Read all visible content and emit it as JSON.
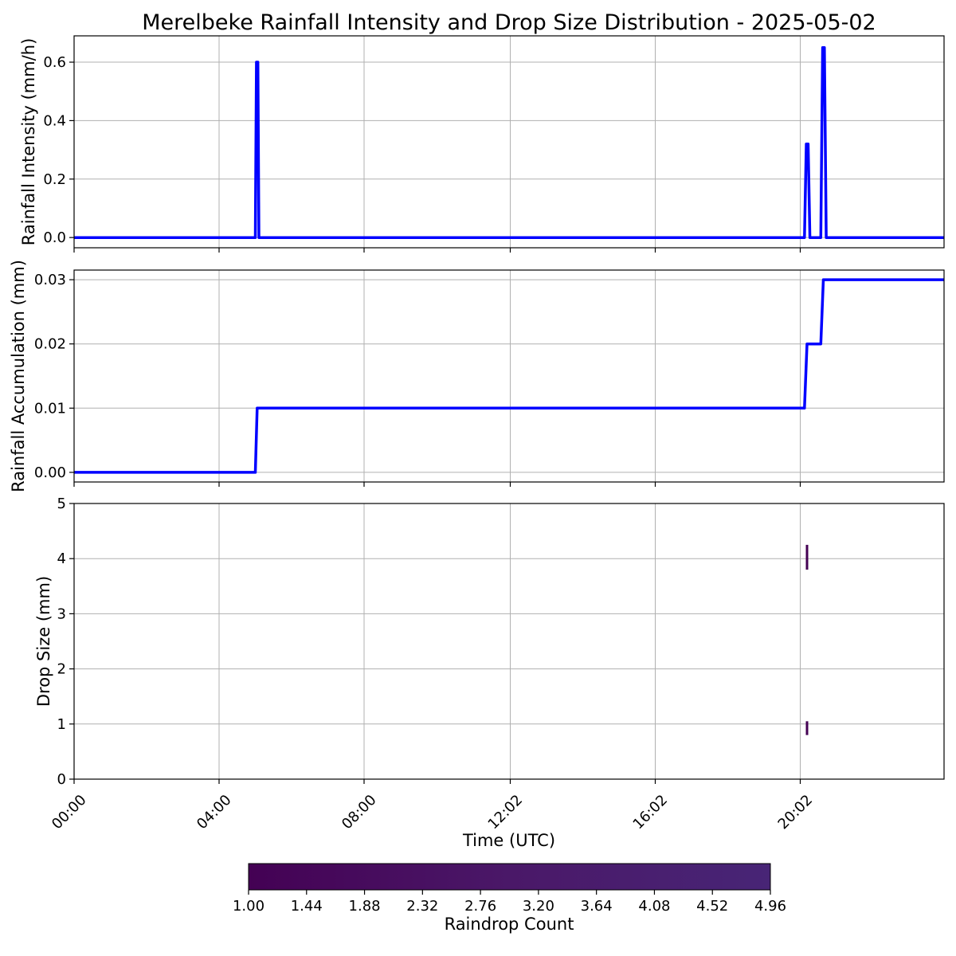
{
  "figure": {
    "title": "Merelbeke Rainfall Intensity and Drop Size Distribution - 2025-05-02"
  },
  "chart_data": [
    {
      "type": "line",
      "panel": "intensity",
      "title": "Merelbeke Rainfall Intensity and Drop Size Distribution - 2025-05-02",
      "xlabel": "",
      "ylabel": "Rainfall Intensity (mm/h)",
      "x_unit": "hours since 00:00 UTC",
      "xlim": [
        0,
        24
      ],
      "ylim": [
        -0.035,
        0.69
      ],
      "yticks": [
        0.0,
        0.2,
        0.4,
        0.6
      ],
      "ytick_labels": [
        "0.0",
        "0.2",
        "0.4",
        "0.6"
      ],
      "grid": true,
      "color": "#0000ff",
      "x": [
        0,
        5.0,
        5.03,
        5.07,
        5.1,
        20.15,
        20.2,
        20.25,
        20.3,
        20.6,
        20.65,
        20.7,
        20.75,
        24
      ],
      "y": [
        0,
        0,
        0.6,
        0.6,
        0,
        0,
        0.32,
        0.32,
        0,
        0,
        0.65,
        0.65,
        0,
        0
      ]
    },
    {
      "type": "line",
      "panel": "accumulation",
      "xlabel": "",
      "ylabel": "Rainfall Accumulation (mm)",
      "x_unit": "hours since 00:00 UTC",
      "xlim": [
        0,
        24
      ],
      "ylim": [
        -0.0015,
        0.0315
      ],
      "yticks": [
        0.0,
        0.01,
        0.02,
        0.03
      ],
      "ytick_labels": [
        "0.00",
        "0.01",
        "0.02",
        "0.03"
      ],
      "grid": true,
      "color": "#0000ff",
      "x": [
        0,
        5.0,
        5.05,
        20.15,
        20.22,
        20.6,
        20.67,
        24
      ],
      "y": [
        0,
        0,
        0.01,
        0.01,
        0.02,
        0.02,
        0.03,
        0.03
      ]
    },
    {
      "type": "heatmap",
      "panel": "drop-size",
      "xlabel": "Time (UTC)",
      "ylabel": "Drop Size (mm)",
      "x_unit": "hours since 00:00 UTC",
      "xlim": [
        0,
        24
      ],
      "ylim": [
        0,
        5
      ],
      "yticks": [
        0,
        1,
        2,
        3,
        4,
        5
      ],
      "ytick_labels": [
        "0",
        "1",
        "2",
        "3",
        "4",
        "5"
      ],
      "xticks": [
        0,
        4,
        8,
        12.033,
        16.033,
        20.033
      ],
      "xtick_labels": [
        "00:00",
        "04:00",
        "08:00",
        "12:02",
        "16:02",
        "20:02"
      ],
      "grid": true,
      "cells": [
        {
          "time": 20.22,
          "d_min": 3.8,
          "d_max": 4.25,
          "count": 1.0
        },
        {
          "time": 20.22,
          "d_min": 0.8,
          "d_max": 1.05,
          "count": 1.0
        }
      ]
    }
  ],
  "colorbar": {
    "label": "Raindrop Count",
    "range": [
      1.0,
      4.96
    ],
    "ticks": [
      1.0,
      1.44,
      1.88,
      2.32,
      2.76,
      3.2,
      3.64,
      4.08,
      4.52,
      4.96
    ],
    "tick_labels": [
      "1.00",
      "1.44",
      "1.88",
      "2.32",
      "2.76",
      "3.20",
      "3.64",
      "4.08",
      "4.52",
      "4.96"
    ],
    "colormap": [
      "#440154",
      "#4a1868",
      "#482576"
    ]
  }
}
